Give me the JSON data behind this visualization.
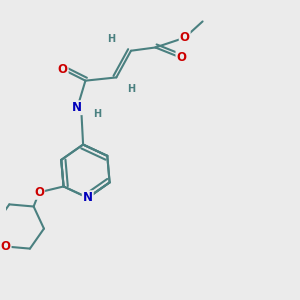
{
  "background_color": "#ebebeb",
  "bond_color": "#4a8080",
  "bond_width": 1.5,
  "atom_colors": {
    "O": "#cc0000",
    "N": "#0000bb",
    "C": "#4a8080",
    "H": "#4a8080"
  },
  "font_size_atom": 8.5,
  "font_size_h": 7.0,
  "dbl_off": 0.01
}
